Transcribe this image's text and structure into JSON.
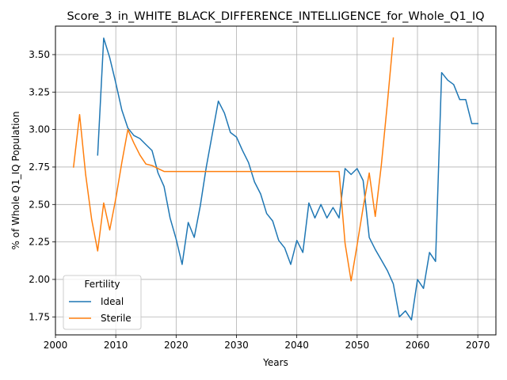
{
  "chart_data": {
    "type": "line",
    "title": "Score_3_in_WHITE_BLACK_DIFFERENCE_INTELLIGENCE_for_Whole_Q1_IQ",
    "xlabel": "Years",
    "ylabel": "% of Whole Q1_IQ Population",
    "xlim": [
      2000,
      2073
    ],
    "ylim": [
      1.63,
      3.69
    ],
    "xticks": [
      2000,
      2010,
      2020,
      2030,
      2040,
      2050,
      2060,
      2070
    ],
    "xtick_labels": [
      "2000",
      "2010",
      "2020",
      "2030",
      "2040",
      "2050",
      "2060",
      "2070"
    ],
    "yticks": [
      1.75,
      2.0,
      2.25,
      2.5,
      2.75,
      3.0,
      3.25,
      3.5
    ],
    "ytick_labels": [
      "1.75",
      "2.00",
      "2.25",
      "2.50",
      "2.75",
      "3.00",
      "3.25",
      "3.50"
    ],
    "grid": true,
    "legend": {
      "title": "Fertility",
      "placement": "lower-left"
    },
    "series": [
      {
        "name": "Ideal",
        "color": "#1f77b4",
        "x": [
          2007,
          2008,
          2009,
          2010,
          2011,
          2012,
          2013,
          2014,
          2015,
          2016,
          2017,
          2018,
          2019,
          2020,
          2021,
          2022,
          2023,
          2024,
          2025,
          2026,
          2027,
          2028,
          2029,
          2030,
          2031,
          2032,
          2033,
          2034,
          2035,
          2036,
          2037,
          2038,
          2039,
          2040,
          2041,
          2042,
          2043,
          2044,
          2045,
          2046,
          2047,
          2048,
          2049,
          2050,
          2051,
          2052,
          2053,
          2054,
          2055,
          2056,
          2057,
          2058,
          2059,
          2060,
          2061,
          2062,
          2063,
          2064,
          2065,
          2066,
          2067,
          2068,
          2069,
          2070
        ],
        "y": [
          2.83,
          3.61,
          3.48,
          3.31,
          3.13,
          3.01,
          2.96,
          2.94,
          2.9,
          2.86,
          2.71,
          2.62,
          2.41,
          2.27,
          2.1,
          2.38,
          2.28,
          2.49,
          2.75,
          2.97,
          3.19,
          3.11,
          2.98,
          2.95,
          2.86,
          2.78,
          2.65,
          2.57,
          2.44,
          2.39,
          2.26,
          2.21,
          2.1,
          2.26,
          2.18,
          2.51,
          2.41,
          2.5,
          2.41,
          2.48,
          2.41,
          2.74,
          2.7,
          2.74,
          2.66,
          2.28,
          2.2,
          2.13,
          2.06,
          1.97,
          1.75,
          1.79,
          1.73,
          2.0,
          1.94,
          2.18,
          2.12,
          3.38,
          3.33,
          3.3,
          3.2,
          3.2,
          3.04,
          3.04
        ]
      },
      {
        "name": "Sterile",
        "color": "#ff7f0e",
        "x": [
          2003,
          2004,
          2005,
          2006,
          2007,
          2008,
          2009,
          2010,
          2011,
          2012,
          2013,
          2014,
          2015,
          2016,
          2017,
          2018,
          2047,
          2048,
          2049,
          2050,
          2051,
          2052,
          2053,
          2054,
          2055,
          2056
        ],
        "y": [
          2.75,
          3.1,
          2.7,
          2.4,
          2.19,
          2.51,
          2.33,
          2.54,
          2.78,
          3.0,
          2.91,
          2.83,
          2.77,
          2.76,
          2.74,
          2.72,
          2.72,
          2.24,
          1.99,
          2.23,
          2.48,
          2.71,
          2.42,
          2.76,
          3.17,
          3.61
        ]
      }
    ]
  }
}
